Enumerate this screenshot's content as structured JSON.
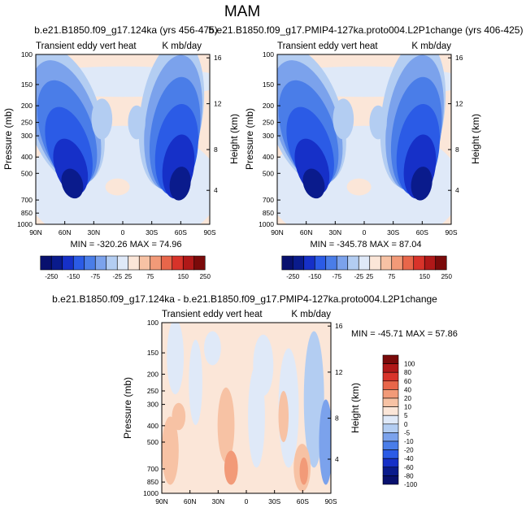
{
  "figure_title": "MAM",
  "colors": {
    "palette11": [
      "#0a1b8c",
      "#1630c8",
      "#2b5be6",
      "#4a7de8",
      "#7ba2ec",
      "#b3cdf2",
      "#dfe9f8",
      "#fbe6d8",
      "#f7c2a4",
      "#f29a78",
      "#e8664a"
    ],
    "palette_full": [
      "#08106e",
      "#0a1b8c",
      "#1630c8",
      "#2b5be6",
      "#4a7de8",
      "#7ba2ec",
      "#b3cdf2",
      "#dfe9f8",
      "#fbe6d8",
      "#f7c2a4",
      "#f29a78",
      "#e8664a",
      "#d8332a",
      "#b01818",
      "#7a0a0a"
    ]
  },
  "chart_data": [
    {
      "type": "heatmap",
      "title": "b.e21.B1850.f09_g17.124ka (yrs 456-475)",
      "left_string": "Transient eddy vert heat",
      "right_string": "K mb/day",
      "xlabel": "",
      "ylabel": "Pressure (mb)",
      "y2label": "Height (km)",
      "x_ticks": [
        "90N",
        "60N",
        "30N",
        "0",
        "30S",
        "60S",
        "90S"
      ],
      "y_ticks": [
        "100",
        "150",
        "200",
        "250",
        "300",
        "400",
        "500",
        "700",
        "850",
        "1000"
      ],
      "y2_ticks": [
        "16",
        "12",
        "8",
        "4"
      ],
      "stats": "MIN = -320.26  MAX = 74.96",
      "colorbar": {
        "orientation": "horizontal",
        "levels": [
          "-250",
          "-200",
          "-150",
          "-100",
          "-75",
          "-50",
          "-25",
          "25",
          "50",
          "75",
          "100",
          "125",
          "150",
          "200",
          "250"
        ],
        "labels": [
          "-250",
          "-150",
          "-75",
          "-25",
          "25",
          "75",
          "150",
          "250"
        ]
      }
    },
    {
      "type": "heatmap",
      "title": "b.e21.B1850.f09_g17.PMIP4-127ka.proto004.L2P1change (yrs 406-425)",
      "left_string": "Transient eddy vert heat",
      "right_string": "K mb/day",
      "xlabel": "",
      "ylabel": "Pressure (mb)",
      "y2label": "Height (km)",
      "x_ticks": [
        "90N",
        "60N",
        "30N",
        "0",
        "30S",
        "60S",
        "90S"
      ],
      "y_ticks": [
        "100",
        "150",
        "200",
        "250",
        "300",
        "400",
        "500",
        "700",
        "850",
        "1000"
      ],
      "y2_ticks": [
        "16",
        "12",
        "8",
        "4"
      ],
      "stats": "MIN = -345.78  MAX = 87.04",
      "colorbar": {
        "orientation": "horizontal",
        "levels": [
          "-250",
          "-200",
          "-150",
          "-100",
          "-75",
          "-50",
          "-25",
          "25",
          "50",
          "75",
          "100",
          "125",
          "150",
          "200",
          "250"
        ],
        "labels": [
          "-250",
          "-150",
          "-75",
          "-25",
          "25",
          "75",
          "150",
          "250"
        ]
      }
    },
    {
      "type": "heatmap",
      "title": "b.e21.B1850.f09_g17.124ka - b.e21.B1850.f09_g17.PMIP4-127ka.proto004.L2P1change",
      "left_string": "Transient eddy vert heat",
      "right_string": "K mb/day",
      "xlabel": "",
      "ylabel": "Pressure (mb)",
      "y2label": "Height (km)",
      "x_ticks": [
        "90N",
        "60N",
        "30N",
        "0",
        "30S",
        "60S",
        "90S"
      ],
      "y_ticks": [
        "100",
        "150",
        "200",
        "250",
        "300",
        "400",
        "500",
        "700",
        "850",
        "1000"
      ],
      "y2_ticks": [
        "16",
        "12",
        "8",
        "4"
      ],
      "stats": "MIN = -45.71  MAX = 57.86",
      "colorbar": {
        "orientation": "vertical",
        "labels": [
          "100",
          "80",
          "60",
          "40",
          "20",
          "10",
          "5",
          "0",
          "-5",
          "-10",
          "-20",
          "-40",
          "-60",
          "-80",
          "-100"
        ]
      }
    }
  ]
}
